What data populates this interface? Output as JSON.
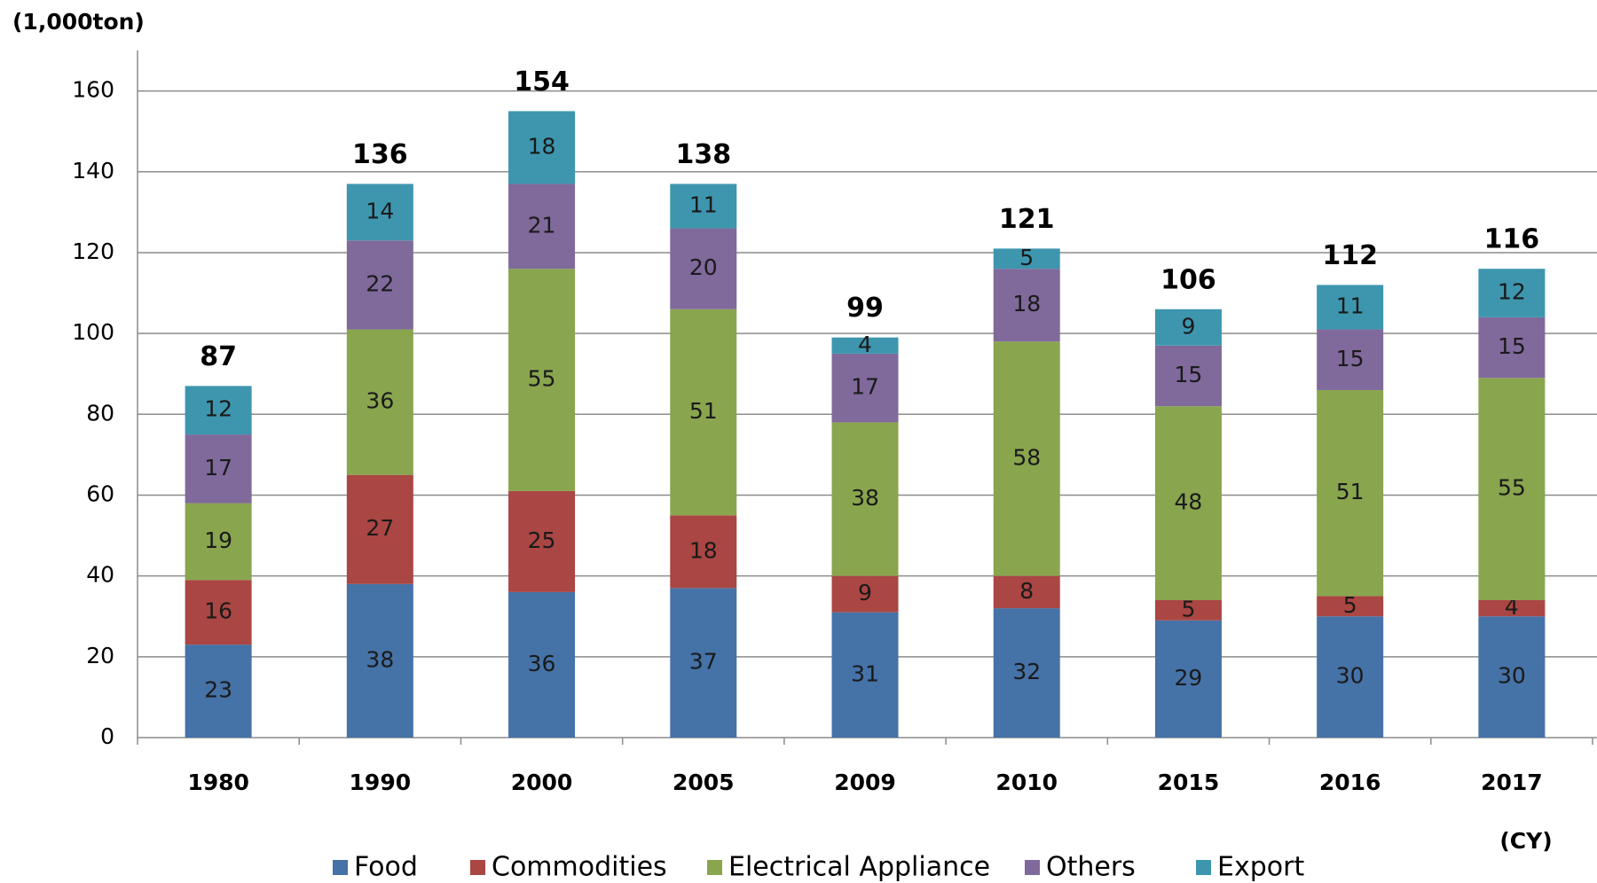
{
  "chart_data": {
    "type": "stacked_bar",
    "y_unit": "(1,000ton)",
    "x_unit": "(CY)",
    "categories": [
      "1980",
      "1990",
      "2000",
      "2005",
      "2009",
      "2010",
      "2015",
      "2016",
      "2017"
    ],
    "series": [
      {
        "name": "Food",
        "color": "#4572a7",
        "values": [
          23,
          38,
          36,
          37,
          31,
          32,
          29,
          30,
          30
        ]
      },
      {
        "name": "Commodities",
        "color": "#aa4643",
        "values": [
          16,
          27,
          25,
          18,
          9,
          8,
          5,
          5,
          4
        ]
      },
      {
        "name": "Electrical Appliance",
        "color": "#89a54e",
        "values": [
          19,
          36,
          55,
          51,
          38,
          58,
          48,
          51,
          55
        ]
      },
      {
        "name": "Others",
        "color": "#80699b",
        "values": [
          17,
          22,
          21,
          20,
          17,
          18,
          15,
          15,
          15
        ]
      },
      {
        "name": "Export",
        "color": "#3d96ae",
        "values": [
          12,
          14,
          18,
          11,
          4,
          5,
          9,
          11,
          12
        ]
      }
    ],
    "totals": [
      87,
      136,
      154,
      138,
      99,
      121,
      106,
      112,
      116
    ],
    "ylim": [
      0,
      170
    ],
    "yticks": [
      0,
      20,
      40,
      60,
      80,
      100,
      120,
      140,
      160
    ],
    "grid": true,
    "legend": "bottom"
  }
}
